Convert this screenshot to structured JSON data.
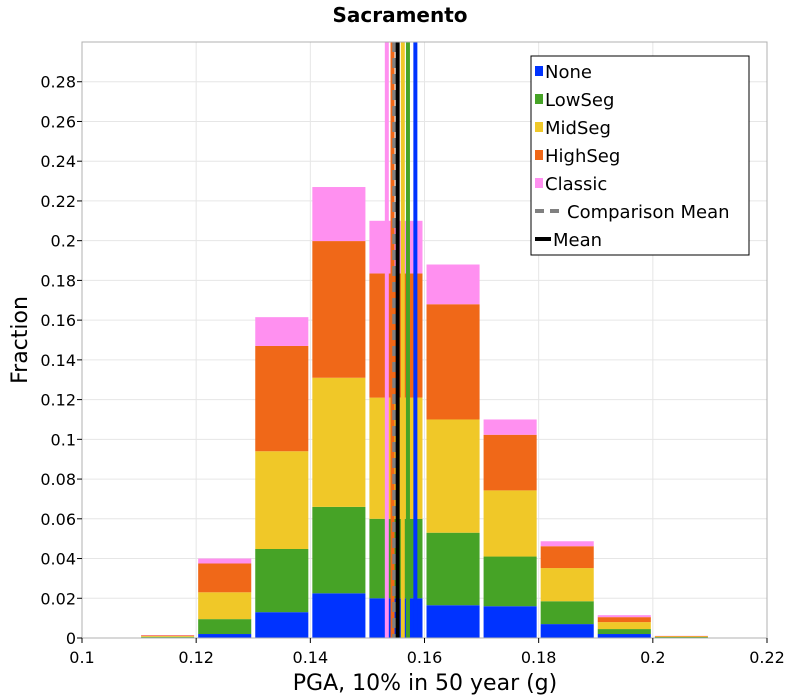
{
  "chart_data": {
    "type": "bar",
    "stacked": true,
    "title": "Sacramento",
    "xlabel": "PGA, 10% in 50 year (g)",
    "ylabel": "Fraction",
    "xlim": [
      0.1,
      0.22
    ],
    "ylim": [
      0,
      0.3
    ],
    "xticks": [
      0.1,
      0.12,
      0.14,
      0.16,
      0.18,
      0.2,
      0.22
    ],
    "xtick_labels": [
      "0.1",
      "0.12",
      "0.14",
      "0.16",
      "0.18",
      "0.2",
      "0.22"
    ],
    "yticks": [
      0,
      0.02,
      0.04,
      0.06,
      0.08,
      0.1,
      0.12,
      0.14,
      0.16,
      0.18,
      0.2,
      0.22,
      0.24,
      0.26,
      0.28
    ],
    "ytick_labels": [
      "0",
      "0.02",
      "0.04",
      "0.06",
      "0.08",
      "0.1",
      "0.12",
      "0.14",
      "0.16",
      "0.18",
      "0.2",
      "0.22",
      "0.24",
      "0.26",
      "0.28"
    ],
    "grid": true,
    "legend_position": "top-right",
    "bins": [
      {
        "x0": 0.11,
        "x1": 0.12
      },
      {
        "x0": 0.12,
        "x1": 0.13
      },
      {
        "x0": 0.13,
        "x1": 0.14
      },
      {
        "x0": 0.14,
        "x1": 0.15
      },
      {
        "x0": 0.15,
        "x1": 0.16
      },
      {
        "x0": 0.16,
        "x1": 0.17
      },
      {
        "x0": 0.17,
        "x1": 0.18
      },
      {
        "x0": 0.18,
        "x1": 0.19
      },
      {
        "x0": 0.19,
        "x1": 0.2
      },
      {
        "x0": 0.2,
        "x1": 0.21
      }
    ],
    "series": [
      {
        "name": "None",
        "color": "#0033ff",
        "values": [
          0.0003,
          0.002,
          0.013,
          0.0225,
          0.02,
          0.0165,
          0.016,
          0.007,
          0.002,
          0.0002
        ]
      },
      {
        "name": "LowSeg",
        "color": "#46a326",
        "values": [
          0.0003,
          0.0075,
          0.0318,
          0.0435,
          0.04,
          0.0365,
          0.025,
          0.0115,
          0.0025,
          0.0003
        ]
      },
      {
        "name": "MidSeg",
        "color": "#f0c828",
        "values": [
          0.0004,
          0.0135,
          0.0492,
          0.065,
          0.061,
          0.057,
          0.0333,
          0.0167,
          0.0035,
          0.0003
        ]
      },
      {
        "name": "HighSeg",
        "color": "#f06818",
        "values": [
          0.0003,
          0.0145,
          0.053,
          0.0688,
          0.0625,
          0.058,
          0.028,
          0.011,
          0.0025,
          0.0002
        ]
      },
      {
        "name": "Classic",
        "color": "#ff90f0",
        "values": [
          0.0002,
          0.0025,
          0.0145,
          0.0272,
          0.0265,
          0.02,
          0.0077,
          0.0025,
          0.001,
          0.0001
        ]
      }
    ],
    "vertical_lines": [
      {
        "name": "None mean",
        "x": 0.1584,
        "color": "#0033ff",
        "style": "solid"
      },
      {
        "name": "LowSeg mean",
        "x": 0.1571,
        "color": "#46a326",
        "style": "solid"
      },
      {
        "name": "MidSeg mean",
        "x": 0.1562,
        "color": "#f0c828",
        "style": "solid"
      },
      {
        "name": "HighSeg mean",
        "x": 0.1544,
        "color": "#f06818",
        "style": "solid"
      },
      {
        "name": "Classic mean",
        "x": 0.1534,
        "color": "#ff90f0",
        "style": "solid"
      },
      {
        "name": "Comparison Mean",
        "x": 0.1547,
        "color": "#808080",
        "style": "dashed"
      },
      {
        "name": "Mean",
        "x": 0.1553,
        "color": "#000000",
        "style": "solid"
      }
    ],
    "legend": [
      {
        "label": "None",
        "color": "#0033ff",
        "marker": "square"
      },
      {
        "label": "LowSeg",
        "color": "#46a326",
        "marker": "square"
      },
      {
        "label": "MidSeg",
        "color": "#f0c828",
        "marker": "square"
      },
      {
        "label": "HighSeg",
        "color": "#f06818",
        "marker": "square"
      },
      {
        "label": "Classic",
        "color": "#ff90f0",
        "marker": "square"
      },
      {
        "label": "Comparison Mean",
        "color": "#808080",
        "marker": "dashed-line"
      },
      {
        "label": "Mean",
        "color": "#000000",
        "marker": "line"
      }
    ]
  }
}
